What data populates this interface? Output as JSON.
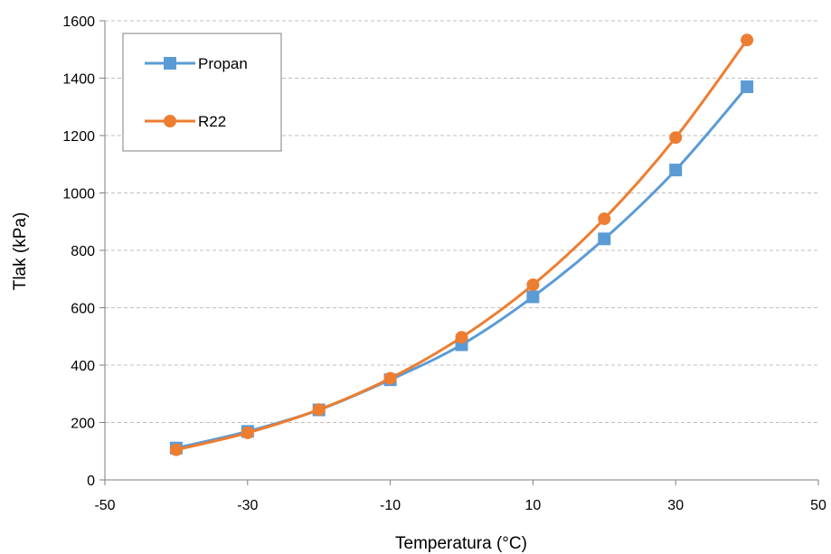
{
  "chart_data": {
    "type": "line",
    "title": "",
    "xlabel": "Temperatura (°C)",
    "ylabel": "Tlak (kPa)",
    "xlim": [
      -50,
      50
    ],
    "ylim": [
      0,
      1600
    ],
    "xticks": [
      -50,
      -30,
      -10,
      10,
      30,
      50
    ],
    "yticks": [
      0,
      200,
      400,
      600,
      800,
      1000,
      1200,
      1400,
      1600
    ],
    "grid": "horizontal dashed",
    "legend_position": "top-left",
    "smooth": true,
    "series": [
      {
        "name": "Propan",
        "color": "#5b9bd5",
        "marker": "square",
        "x": [
          -40,
          -30,
          -20,
          -10,
          0,
          10,
          20,
          30,
          40
        ],
        "y": [
          111,
          169,
          244,
          349,
          471,
          638,
          840,
          1080,
          1370
        ]
      },
      {
        "name": "R22",
        "color": "#ed7d31",
        "marker": "circle",
        "x": [
          -40,
          -30,
          -20,
          -10,
          0,
          10,
          20,
          30,
          40
        ],
        "y": [
          105,
          164,
          245,
          354,
          497,
          680,
          910,
          1193,
          1533
        ]
      }
    ]
  }
}
